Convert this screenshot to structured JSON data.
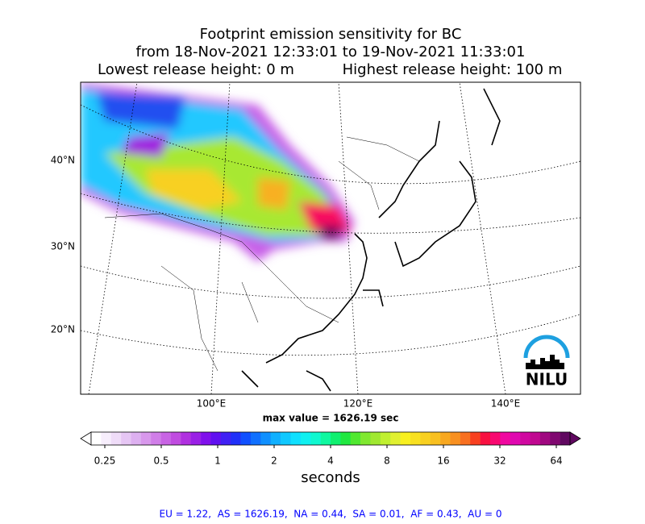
{
  "title": {
    "line1": "Footprint emission sensitivity for BC",
    "line2": "from 18-Nov-2021 12:33:01 to 19-Nov-2021 11:33:01",
    "low_height": "Lowest release height: 0 m",
    "high_height": "Highest release height: 100 m"
  },
  "map": {
    "lat_labels": [
      "40°N",
      "30°N",
      "20°N"
    ],
    "lon_labels": [
      "100°E",
      "120°E",
      "140°E"
    ],
    "max_value": "max value = 1626.19 sec",
    "logo": "NILU"
  },
  "colorbar": {
    "ticks": [
      "0.25",
      "0.5",
      "1",
      "2",
      "4",
      "8",
      "16",
      "32",
      "64"
    ],
    "label": "seconds",
    "colors": [
      "#ffffff",
      "#f7eefc",
      "#efdcf8",
      "#e6c6f4",
      "#ddb0f0",
      "#d898ec",
      "#d07ee8",
      "#c864e4",
      "#c04ce0",
      "#b030e0",
      "#9a20e6",
      "#8010ec",
      "#6010f0",
      "#4020f4",
      "#2030f8",
      "#1050ff",
      "#1070ff",
      "#1090ff",
      "#10b0ff",
      "#10c8ff",
      "#10e0ff",
      "#10f0f0",
      "#10f8d0",
      "#10f8a0",
      "#10f070",
      "#20e840",
      "#50e830",
      "#80e830",
      "#a0e830",
      "#c0f030",
      "#e0f030",
      "#f8f020",
      "#f8e020",
      "#f8d020",
      "#f8c020",
      "#f8a820",
      "#f89020",
      "#f87020",
      "#f84020",
      "#f81040",
      "#f80870",
      "#f008a0",
      "#e008b0",
      "#d008a0",
      "#c00890",
      "#a00880",
      "#800870",
      "#600860"
    ]
  },
  "footer": "EU = 1.22,  AS = 1626.19,  NA = 0.44,  SA = 0.01,  AF = 0.43,  AU = 0"
}
